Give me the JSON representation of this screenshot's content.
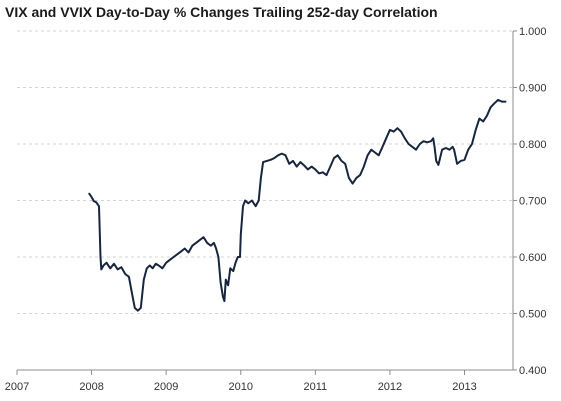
{
  "chart_data": {
    "type": "line",
    "title": "VIX and VVIX Day-to-Day % Changes Trailing 252-day Correlation",
    "xlabel": "",
    "ylabel": "",
    "xlim": [
      2007.0,
      2013.65
    ],
    "ylim": [
      0.4,
      1.0
    ],
    "x_ticks": [
      2007,
      2008,
      2009,
      2010,
      2011,
      2012,
      2013
    ],
    "x_tick_labels": [
      "2007",
      "2008",
      "2009",
      "2010",
      "2011",
      "2012",
      "2013"
    ],
    "y_ticks": [
      0.4,
      0.5,
      0.6,
      0.7,
      0.8,
      0.9,
      1.0
    ],
    "y_tick_labels": [
      "0.400",
      "0.500",
      "0.600",
      "0.700",
      "0.800",
      "0.900",
      "1.000"
    ],
    "y_axis_side": "right",
    "grid": "horizontal dashed",
    "line_color": "#17263d",
    "series": [
      {
        "x": [
          2007.97,
          2008.0,
          2008.03,
          2008.06,
          2008.1,
          2008.12,
          2008.13,
          2008.16,
          2008.2,
          2008.25,
          2008.3,
          2008.35,
          2008.4,
          2008.45,
          2008.5,
          2008.55,
          2008.58,
          2008.62,
          2008.66,
          2008.7,
          2008.74,
          2008.78,
          2008.82,
          2008.86,
          2008.9,
          2008.95,
          2009.0,
          2009.05,
          2009.1,
          2009.15,
          2009.2,
          2009.25,
          2009.3,
          2009.35,
          2009.4,
          2009.45,
          2009.5,
          2009.55,
          2009.6,
          2009.64,
          2009.67,
          2009.7,
          2009.73,
          2009.76,
          2009.78,
          2009.8,
          2009.83,
          2009.86,
          2009.9,
          2009.93,
          2009.96,
          2009.99,
          2010.0,
          2010.03,
          2010.06,
          2010.1,
          2010.15,
          2010.2,
          2010.24,
          2010.27,
          2010.3,
          2010.35,
          2010.4,
          2010.45,
          2010.5,
          2010.55,
          2010.6,
          2010.65,
          2010.7,
          2010.75,
          2010.8,
          2010.85,
          2010.9,
          2010.95,
          2011.0,
          2011.05,
          2011.1,
          2011.15,
          2011.2,
          2011.25,
          2011.3,
          2011.35,
          2011.4,
          2011.45,
          2011.5,
          2011.55,
          2011.6,
          2011.65,
          2011.7,
          2011.75,
          2011.8,
          2011.85,
          2011.9,
          2011.95,
          2012.0,
          2012.05,
          2012.1,
          2012.15,
          2012.2,
          2012.25,
          2012.3,
          2012.35,
          2012.4,
          2012.45,
          2012.5,
          2012.55,
          2012.58,
          2012.6,
          2012.62,
          2012.65,
          2012.7,
          2012.75,
          2012.8,
          2012.84,
          2012.86,
          2012.9,
          2012.95,
          2013.0,
          2013.05,
          2013.1,
          2013.15,
          2013.2,
          2013.25,
          2013.3,
          2013.35,
          2013.4,
          2013.45,
          2013.5,
          2013.55
        ],
        "y": [
          0.712,
          0.706,
          0.699,
          0.697,
          0.69,
          0.6,
          0.578,
          0.585,
          0.59,
          0.58,
          0.588,
          0.578,
          0.582,
          0.57,
          0.565,
          0.53,
          0.51,
          0.505,
          0.51,
          0.56,
          0.58,
          0.585,
          0.58,
          0.588,
          0.585,
          0.58,
          0.59,
          0.595,
          0.6,
          0.605,
          0.61,
          0.615,
          0.608,
          0.62,
          0.625,
          0.63,
          0.635,
          0.625,
          0.62,
          0.625,
          0.615,
          0.6,
          0.555,
          0.53,
          0.522,
          0.56,
          0.55,
          0.58,
          0.575,
          0.59,
          0.6,
          0.6,
          0.64,
          0.69,
          0.7,
          0.695,
          0.7,
          0.69,
          0.7,
          0.74,
          0.768,
          0.77,
          0.772,
          0.775,
          0.78,
          0.783,
          0.78,
          0.765,
          0.77,
          0.76,
          0.768,
          0.762,
          0.755,
          0.76,
          0.755,
          0.748,
          0.75,
          0.745,
          0.76,
          0.775,
          0.78,
          0.77,
          0.765,
          0.74,
          0.73,
          0.74,
          0.745,
          0.76,
          0.78,
          0.79,
          0.785,
          0.78,
          0.795,
          0.81,
          0.825,
          0.822,
          0.828,
          0.822,
          0.81,
          0.8,
          0.795,
          0.79,
          0.8,
          0.805,
          0.803,
          0.805,
          0.81,
          0.793,
          0.77,
          0.763,
          0.79,
          0.793,
          0.79,
          0.795,
          0.79,
          0.765,
          0.77,
          0.772,
          0.79,
          0.8,
          0.825,
          0.845,
          0.84,
          0.85,
          0.865,
          0.872,
          0.878,
          0.875,
          0.875
        ]
      }
    ]
  }
}
